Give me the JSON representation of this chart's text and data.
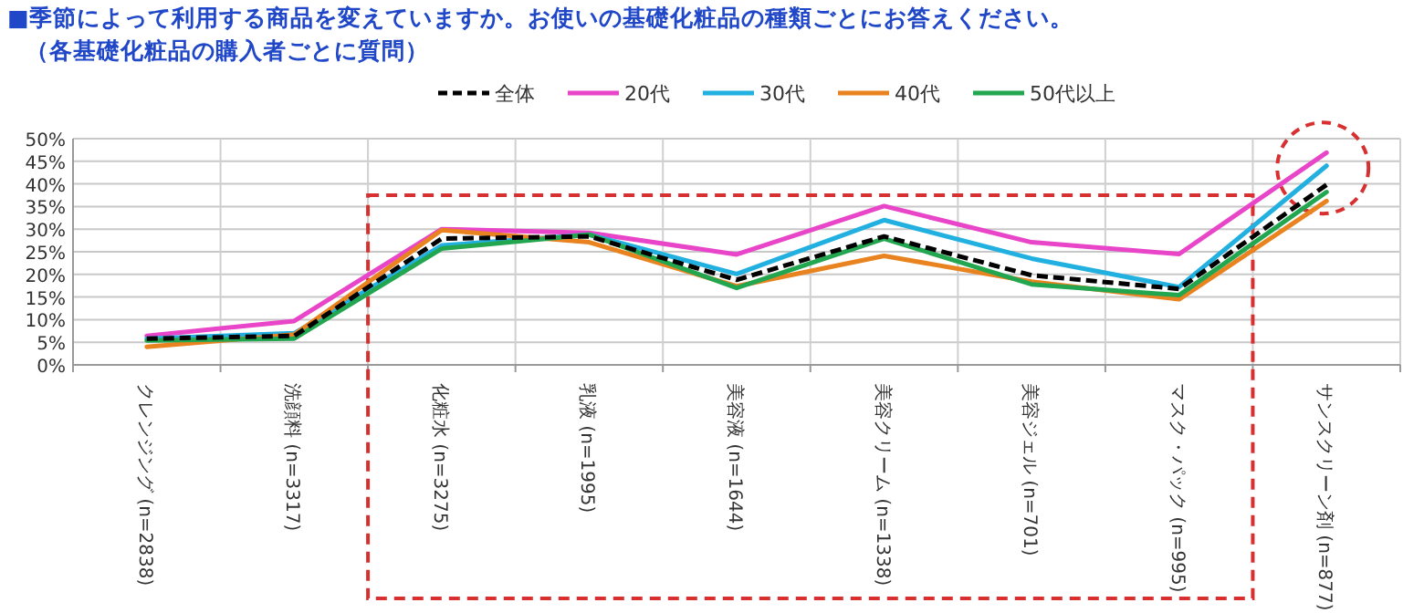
{
  "chart_data": {
    "type": "line",
    "title": "■季節によって利用する商品を変えていますか。お使いの基礎化粧品の種類ごとにお答えください。",
    "subtitle": "（各基礎化粧品の購入者ごとに質問）",
    "categories": [
      "クレンジング (n=2838)",
      "洗顔料 (n=3317)",
      "化粧水 (n=3275)",
      "乳液 (n=1995)",
      "美容液 (n=1644)",
      "美容クリーム (n=1338)",
      "美容ジェル (n=701)",
      "マスク・パック (n=995)",
      "サンスクリーン剤 (n=877)"
    ],
    "ylim": [
      0,
      50
    ],
    "yticks": [
      {
        "value": 0,
        "label": "0%"
      },
      {
        "value": 5,
        "label": "5%"
      },
      {
        "value": 10,
        "label": "10%"
      },
      {
        "value": 15,
        "label": "15%"
      },
      {
        "value": 20,
        "label": "20%"
      },
      {
        "value": 25,
        "label": "25%"
      },
      {
        "value": 30,
        "label": "30%"
      },
      {
        "value": 35,
        "label": "35%"
      },
      {
        "value": 40,
        "label": "40%"
      },
      {
        "value": 45,
        "label": "45%"
      },
      {
        "value": 50,
        "label": "50%"
      }
    ],
    "grid": true,
    "legend": "top",
    "marker": "none",
    "series": [
      {
        "name": "全体",
        "color": "#000000",
        "line_style": "dashed",
        "values": [
          5.8,
          6.4,
          27.9,
          28.4,
          18.8,
          28.4,
          19.8,
          16.8,
          39.8
        ]
      },
      {
        "name": "20代",
        "color": "#e845c8",
        "values": [
          6.4,
          9.7,
          30.0,
          29.2,
          24.4,
          35.1,
          27.1,
          24.5,
          46.9
        ]
      },
      {
        "name": "30代",
        "color": "#22b0e0",
        "values": [
          5.8,
          7.0,
          26.4,
          28.8,
          20.1,
          32.0,
          23.5,
          17.2,
          44.0
        ]
      },
      {
        "name": "40代",
        "color": "#e8831f",
        "values": [
          4.0,
          6.7,
          29.8,
          27.1,
          17.4,
          24.1,
          18.4,
          14.5,
          36.2
        ]
      },
      {
        "name": "50代以上",
        "color": "#23a650",
        "values": [
          5.4,
          5.8,
          25.7,
          28.8,
          17.0,
          27.9,
          17.8,
          15.4,
          38.2
        ]
      }
    ]
  }
}
